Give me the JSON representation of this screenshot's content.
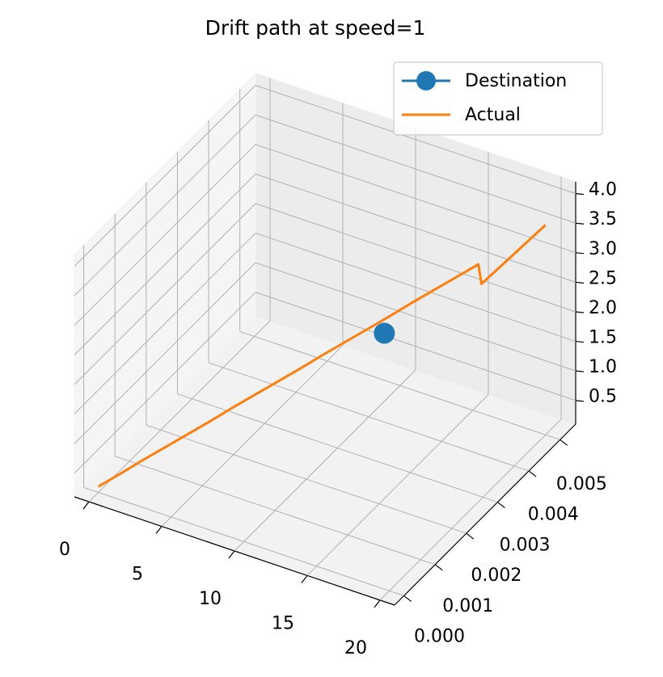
{
  "chart_data": {
    "type": "line3d",
    "title": "Drift path at speed=1",
    "series": [
      {
        "name": "Destination",
        "color": "#1f77b4",
        "marker": "o",
        "x": [
          10
        ],
        "y": [
          0.0045
        ],
        "z": [
          1.25
        ]
      },
      {
        "name": "Actual",
        "color": "#ff7f0e",
        "x": [
          0,
          1,
          2,
          3,
          4,
          5,
          6,
          7,
          8,
          9,
          10,
          11,
          12,
          13,
          14,
          15,
          16,
          17,
          17.1,
          17.5,
          18,
          19,
          20
        ],
        "y": [
          0,
          0.00025,
          0.0005,
          0.00075,
          0.001,
          0.00125,
          0.0015,
          0.00175,
          0.002,
          0.00225,
          0.0025,
          0.00275,
          0.003,
          0.00325,
          0.0035,
          0.00375,
          0.004,
          0.00425,
          0.0043,
          0.0044,
          0.0045,
          0.00475,
          0.005
        ],
        "z": [
          0.2,
          0.37,
          0.55,
          0.72,
          0.89,
          1.06,
          1.24,
          1.41,
          1.58,
          1.75,
          1.93,
          2.1,
          2.27,
          2.44,
          2.62,
          2.79,
          2.96,
          3.13,
          2.78,
          2.9,
          3.05,
          3.35,
          3.65
        ]
      }
    ],
    "xlim": [
      -1,
      21
    ],
    "ylim": [
      -0.0003,
      0.0055
    ],
    "zlim": [
      0.1,
      4.2
    ],
    "xticks": [
      0,
      5,
      10,
      15,
      20
    ],
    "yticks": [
      {
        "value": 0,
        "label": "0.000"
      },
      {
        "value": 0.001,
        "label": "0.001"
      },
      {
        "value": 0.002,
        "label": "0.002"
      },
      {
        "value": 0.003,
        "label": "0.003"
      },
      {
        "value": 0.004,
        "label": "0.004"
      },
      {
        "value": 0.005,
        "label": "0.005"
      }
    ],
    "zticks": [
      0.5,
      {
        "value": 1,
        "label": "1.0"
      },
      1.5,
      {
        "value": 2,
        "label": "2.0"
      },
      2.5,
      {
        "value": 3,
        "label": "3.0"
      },
      3.5,
      {
        "value": 4,
        "label": "4.0"
      }
    ],
    "grid": true,
    "legend": "upper right"
  }
}
